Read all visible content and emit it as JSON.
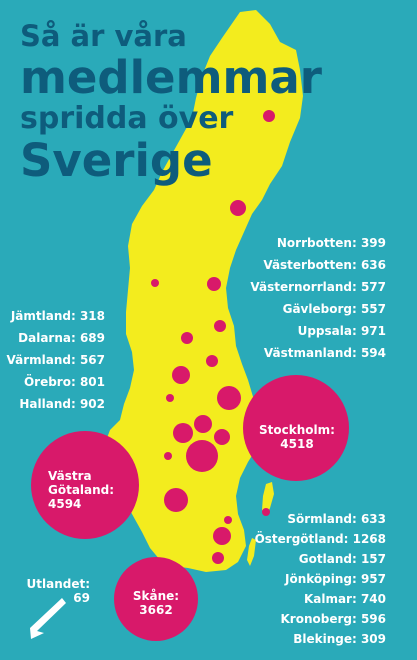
{
  "title": {
    "line1": "Så är våra",
    "line2": "medlemmar",
    "line3": "spridda över",
    "line4": "Sverige"
  },
  "colors": {
    "background": "#2aaab9",
    "land": "#f3ec1e",
    "bubble": "#d8196a",
    "title": "#0e5c7c",
    "label": "#ffffff"
  },
  "regions_north_east": [
    {
      "name": "Norrbotten",
      "count": "399",
      "text": "Norrbotten: 399"
    },
    {
      "name": "Västerbotten",
      "count": "636",
      "text": "Västerbotten: 636"
    },
    {
      "name": "Västernorrland",
      "count": "577",
      "text": "Västernorrland: 577"
    },
    {
      "name": "Gävleborg",
      "count": "557",
      "text": "Gävleborg: 557"
    },
    {
      "name": "Uppsala",
      "count": "971",
      "text": "Uppsala: 971"
    },
    {
      "name": "Västmanland",
      "count": "594",
      "text": "Västmanland: 594"
    }
  ],
  "regions_west": [
    {
      "name": "Jämtland",
      "count": "318",
      "text": "Jämtland: 318"
    },
    {
      "name": "Dalarna",
      "count": "689",
      "text": "Dalarna: 689"
    },
    {
      "name": "Värmland",
      "count": "567",
      "text": "Värmland: 567"
    },
    {
      "name": "Örebro",
      "count": "801",
      "text": "Örebro: 801"
    },
    {
      "name": "Halland",
      "count": "902",
      "text": "Halland: 902"
    }
  ],
  "regions_south_east": [
    {
      "name": "Sörmland",
      "count": "633",
      "text": "Sörmland: 633"
    },
    {
      "name": "Östergötland",
      "count": "1268",
      "text": "Östergötland: 1268"
    },
    {
      "name": "Gotland",
      "count": "157",
      "text": "Gotland: 157"
    },
    {
      "name": "Jönköping",
      "count": "957",
      "text": "Jönköping: 957"
    },
    {
      "name": "Kalmar",
      "count": "740",
      "text": "Kalmar: 740"
    },
    {
      "name": "Kronoberg",
      "count": "596",
      "text": "Kronoberg: 596"
    },
    {
      "name": "Blekinge",
      "count": "309",
      "text": "Blekinge: 309"
    }
  ],
  "big_regions": {
    "stockholm": {
      "name": "Stockholm:",
      "count": "4518"
    },
    "vastra_gotaland": {
      "name_line1": "Västra",
      "name_line2": "Götaland:",
      "count": "4594"
    },
    "skane": {
      "name": "Skåne:",
      "count": "3662"
    }
  },
  "abroad": {
    "name": "Utlandet:",
    "count": "69",
    "icon": "arrow-icon"
  }
}
